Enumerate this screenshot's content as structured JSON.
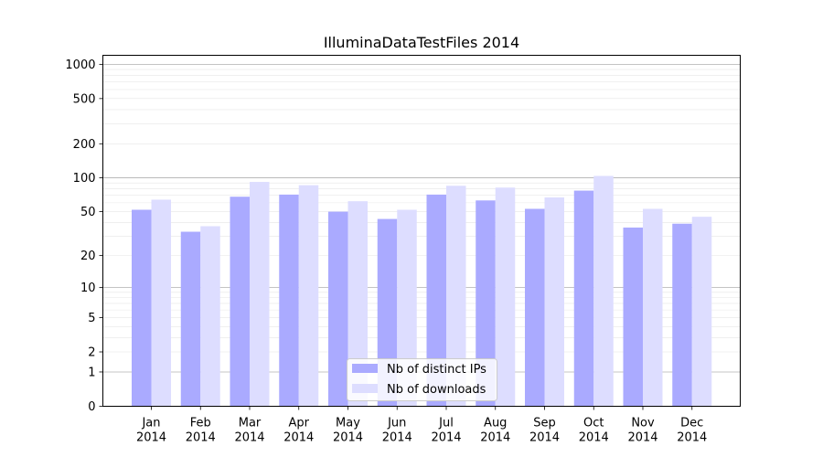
{
  "chart_data": {
    "type": "bar",
    "title": "IlluminaDataTestFiles 2014",
    "xlabel": "",
    "ylabel": "",
    "yscale": "symlog",
    "ylim": [
      0,
      1200
    ],
    "yticks": [
      0,
      1,
      2,
      5,
      10,
      20,
      50,
      100,
      200,
      500,
      1000
    ],
    "ytick_labels": [
      "0",
      "1",
      "2",
      "5",
      "10",
      "20",
      "50",
      "100",
      "200",
      "500",
      "1000"
    ],
    "categories": [
      {
        "month": "Jan",
        "year": "2014"
      },
      {
        "month": "Feb",
        "year": "2014"
      },
      {
        "month": "Mar",
        "year": "2014"
      },
      {
        "month": "Apr",
        "year": "2014"
      },
      {
        "month": "May",
        "year": "2014"
      },
      {
        "month": "Jun",
        "year": "2014"
      },
      {
        "month": "Jul",
        "year": "2014"
      },
      {
        "month": "Aug",
        "year": "2014"
      },
      {
        "month": "Sep",
        "year": "2014"
      },
      {
        "month": "Oct",
        "year": "2014"
      },
      {
        "month": "Nov",
        "year": "2014"
      },
      {
        "month": "Dec",
        "year": "2014"
      }
    ],
    "series": [
      {
        "name": "Nb of distinct IPs",
        "color": "#aaaaff",
        "values": [
          52,
          33,
          68,
          71,
          50,
          43,
          71,
          63,
          53,
          77,
          36,
          39
        ]
      },
      {
        "name": "Nb of downloads",
        "color": "#ddddff",
        "values": [
          64,
          37,
          92,
          86,
          62,
          52,
          85,
          82,
          67,
          104,
          53,
          45
        ]
      }
    ],
    "grid": true,
    "legend_position": "lower-center"
  }
}
